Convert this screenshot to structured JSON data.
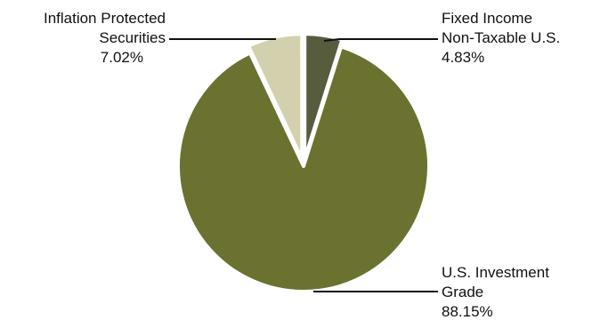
{
  "chart_data": {
    "type": "pie",
    "title": "",
    "slices": [
      {
        "label_lines": [
          "Fixed Income",
          "Non-Taxable U.S."
        ],
        "value_label": "4.83%",
        "value": 4.83,
        "color": "#585c3f"
      },
      {
        "label_lines": [
          "U.S. Investment",
          "Grade"
        ],
        "value_label": "88.15%",
        "value": 88.15,
        "color": "#6b7230"
      },
      {
        "label_lines": [
          "Inflation Protected",
          "Securities"
        ],
        "value_label": "7.02%",
        "value": 7.02,
        "color": "#d3d1ad"
      }
    ]
  }
}
